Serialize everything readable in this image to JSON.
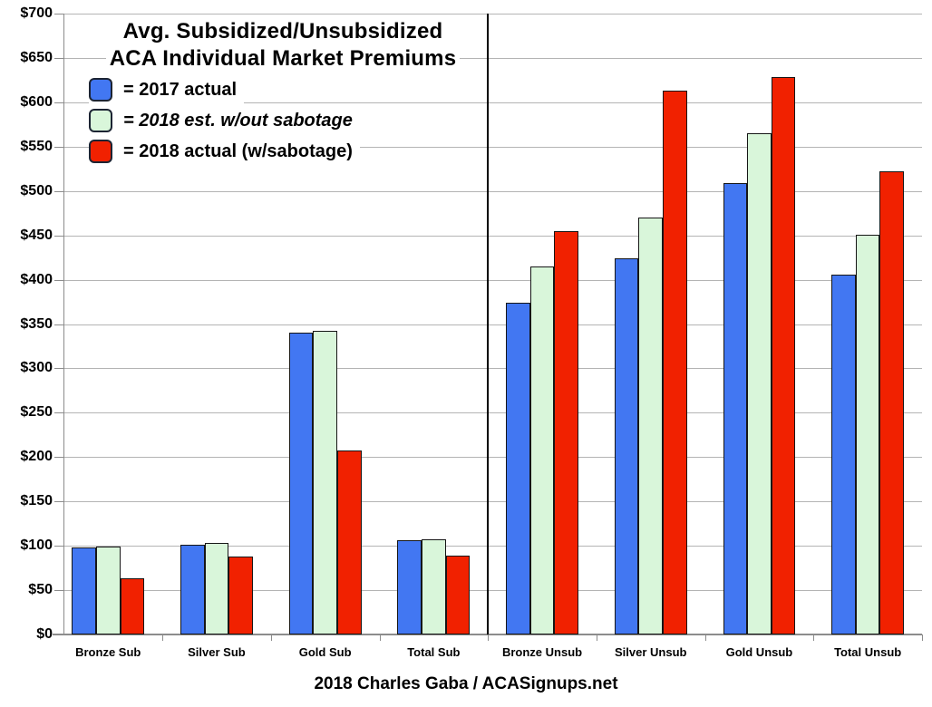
{
  "title": {
    "line1": "Avg. Subsidized/Unsubsidized",
    "line2": "ACA Individual Market Premiums"
  },
  "legend": [
    {
      "label": "= 2017 actual",
      "color": "#4277f2",
      "italic": false
    },
    {
      "label": "= 2018 est. w/out sabotage",
      "color": "#d9f6da",
      "italic": true
    },
    {
      "label": "= 2018 actual (w/sabotage)",
      "color": "#f12100",
      "italic": false
    }
  ],
  "footer": "2018 Charles Gaba / ACASignups.net",
  "chart_data": {
    "type": "bar",
    "title": "Avg. Subsidized/Unsubsidized ACA Individual Market Premiums",
    "categories": [
      "Bronze Sub",
      "Silver Sub",
      "Gold Sub",
      "Total Sub",
      "Bronze Unsub",
      "Silver Unsub",
      "Gold Unsub",
      "Total Unsub"
    ],
    "series": [
      {
        "name": "2017 actual",
        "color": "#4277f2",
        "values": [
          98,
          101,
          340,
          106,
          374,
          424,
          509,
          406
        ]
      },
      {
        "name": "2018 est. w/out sabotage",
        "color": "#d9f6da",
        "values": [
          99,
          103,
          342,
          107,
          415,
          470,
          565,
          451
        ]
      },
      {
        "name": "2018 actual (w/sabotage)",
        "color": "#f12100",
        "values": [
          63,
          88,
          207,
          89,
          455,
          613,
          628,
          522
        ]
      }
    ],
    "ylabel_prefix": "$",
    "ylim": [
      0,
      700
    ],
    "ytick_step": 50,
    "grid": true,
    "divider_after_category": 4,
    "legend_position": "top-left",
    "footer": "2018 Charles Gaba / ACASignups.net"
  }
}
